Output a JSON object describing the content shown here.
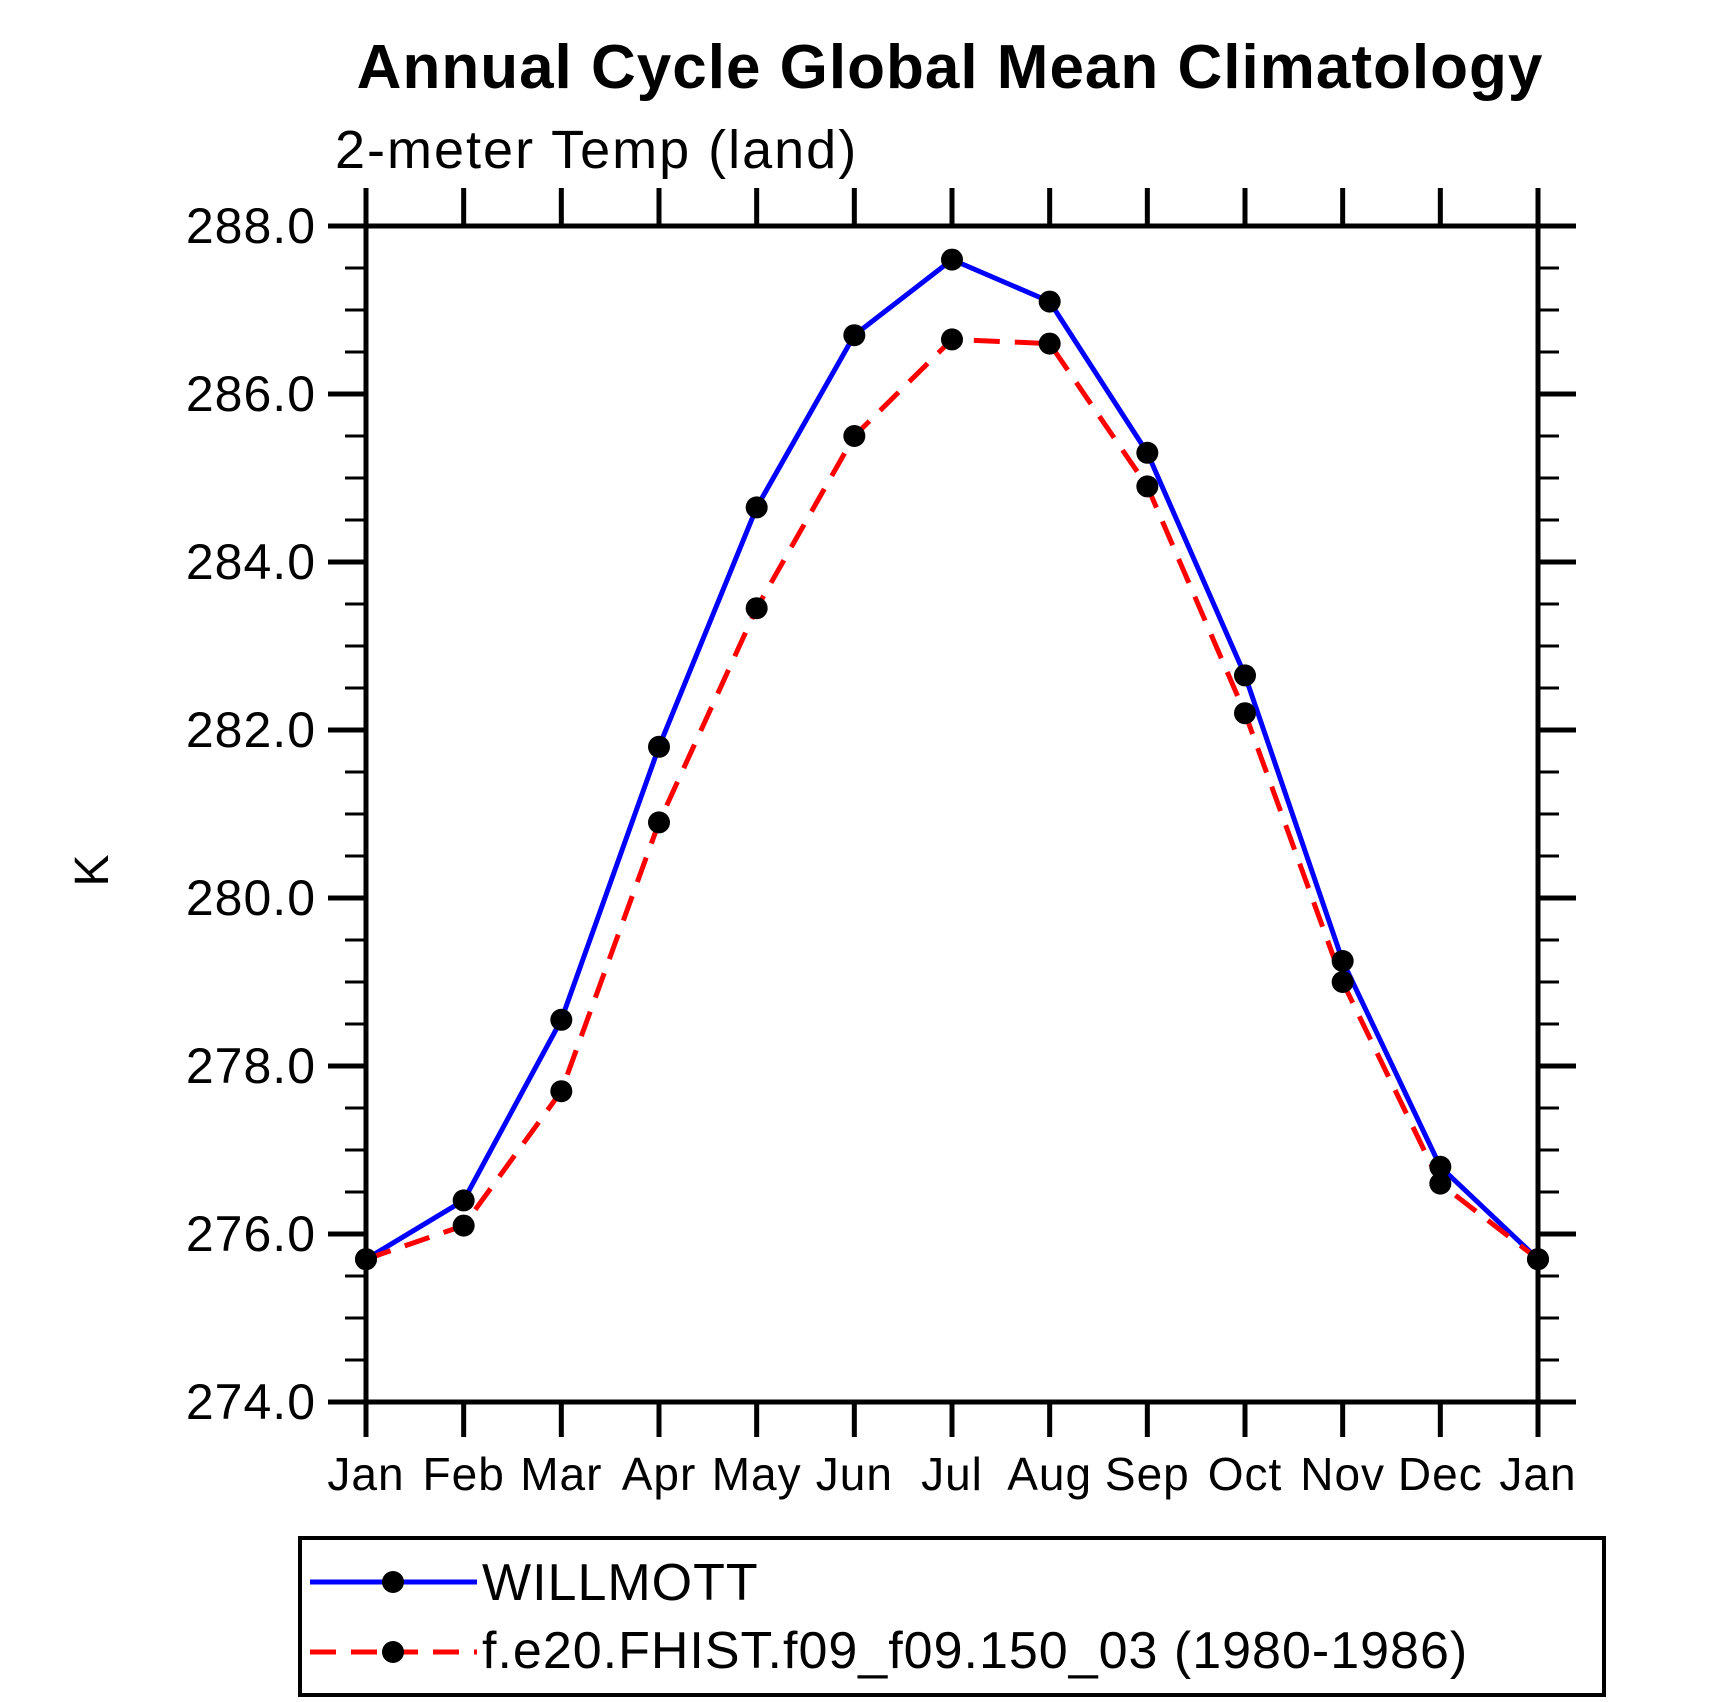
{
  "page": {
    "background": "#ffffff",
    "text_color": "#000000"
  },
  "chart_data": {
    "type": "line",
    "title": "Annual Cycle Global Mean Climatology",
    "subtitle": "2-meter Temp (land)",
    "ylabel": "K",
    "xlabel": "",
    "categories": [
      "Jan",
      "Feb",
      "Mar",
      "Apr",
      "May",
      "Jun",
      "Jul",
      "Aug",
      "Sep",
      "Oct",
      "Nov",
      "Dec",
      "Jan"
    ],
    "ylim": [
      274.0,
      288.0
    ],
    "ytick_labels": [
      "288.0",
      "286.0",
      "284.0",
      "282.0",
      "280.0",
      "278.0",
      "276.0",
      "274.0"
    ],
    "ytick_interval_major": 2.0,
    "ytick_interval_minor": 0.5,
    "grid": false,
    "legend_position": "bottom",
    "series": [
      {
        "name": "WILLMOTT",
        "color": "#0000ff",
        "line_style": "solid",
        "marker": "filled-circle",
        "marker_color": "#000000",
        "values": [
          275.7,
          276.4,
          278.55,
          281.8,
          284.65,
          286.7,
          287.6,
          287.1,
          285.3,
          282.65,
          279.25,
          276.8,
          275.7
        ]
      },
      {
        "name": "f.e20.FHIST.f09_f09.150_03 (1980-1986)",
        "color": "#ff0000",
        "line_style": "dashed",
        "marker": "filled-circle",
        "marker_color": "#000000",
        "values": [
          275.7,
          276.1,
          277.7,
          280.9,
          283.45,
          285.5,
          286.65,
          286.6,
          284.9,
          282.2,
          279.0,
          276.6,
          275.7
        ]
      }
    ]
  }
}
